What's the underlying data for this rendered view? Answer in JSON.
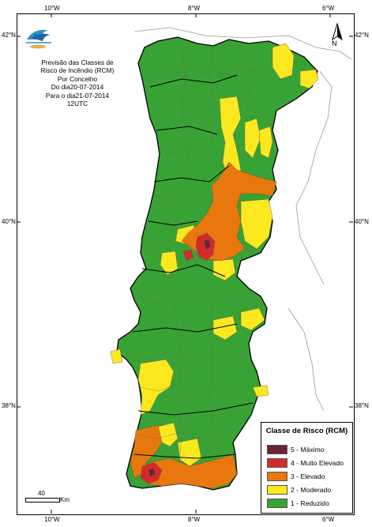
{
  "map": {
    "title_lines": [
      "Previsão das Classes de",
      "Risco de Incêndio (RCM)",
      "Por Concelho",
      "Do dia20-07-2014",
      "Para o dia21-07-2014",
      "12UTC"
    ],
    "lon_ticks": [
      "10°W",
      "8°W",
      "6°W"
    ],
    "lat_ticks": [
      "42°N",
      "40°N",
      "38°N"
    ],
    "north_label": "N",
    "scale": {
      "value": "40",
      "unit": "Km"
    }
  },
  "legend": {
    "title": "Classe de Risco (RCM)",
    "classes": [
      {
        "label": "5 - Máximo",
        "color": "#6b2433"
      },
      {
        "label": "4 - Muito Elevado",
        "color": "#d42a2a"
      },
      {
        "label": "3 - Elevado",
        "color": "#e8780e"
      },
      {
        "label": "2 - Moderado",
        "color": "#fbe81f"
      },
      {
        "label": "1 - Reduzido",
        "color": "#39a234"
      }
    ]
  },
  "colors": {
    "land": "#39a234",
    "border": "#000000",
    "ocean": "#ffffff"
  }
}
